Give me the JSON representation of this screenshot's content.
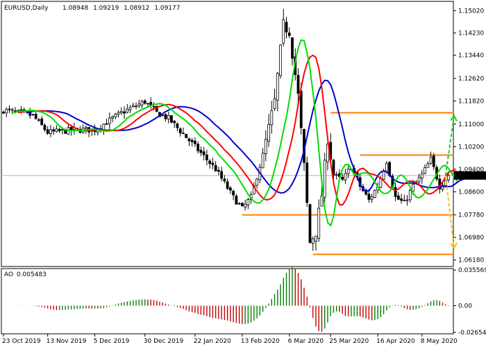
{
  "chart_data": {
    "type": "candlestick",
    "symbol": "EURUSD",
    "timeframe": "Daily",
    "ohlc_header": [
      "1.08948",
      "1.09219",
      "1.08912",
      "1.09177"
    ],
    "current_price": "1.09177",
    "price_axis": {
      "ylim": [
        1.0595,
        1.1535
      ],
      "ticks": [
        "1.15020",
        "1.14230",
        "1.13440",
        "1.12620",
        "1.11820",
        "1.11000",
        "1.10200",
        "1.09400",
        "1.08600",
        "1.07780",
        "1.06980",
        "1.06180"
      ]
    },
    "date_axis": {
      "labels": [
        "23 Oct 2019",
        "13 Nov 2019",
        "5 Dec 2019",
        "30 Dec 2019",
        "22 Jan 2020",
        "13 Feb 2020",
        "6 Mar 2020",
        "25 Mar 2020",
        "16 Apr 2020",
        "8 May 2020"
      ],
      "label_bars": [
        0,
        15,
        31,
        48,
        65,
        81,
        97,
        111,
        127,
        142
      ]
    },
    "bar_count": 152,
    "key_price_path": [
      [
        0,
        1.115
      ],
      [
        10,
        1.113
      ],
      [
        15,
        1.107
      ],
      [
        25,
        1.108
      ],
      [
        31,
        1.108
      ],
      [
        40,
        1.114
      ],
      [
        48,
        1.118
      ],
      [
        52,
        1.114
      ],
      [
        56,
        1.112
      ],
      [
        65,
        1.102
      ],
      [
        72,
        1.094
      ],
      [
        78,
        1.084
      ],
      [
        81,
        1.08
      ],
      [
        84,
        1.084
      ],
      [
        88,
        1.099
      ],
      [
        92,
        1.118
      ],
      [
        95,
        1.145
      ],
      [
        97,
        1.143
      ],
      [
        100,
        1.12
      ],
      [
        102,
        1.095
      ],
      [
        104,
        1.068
      ],
      [
        106,
        1.072
      ],
      [
        108,
        1.085
      ],
      [
        110,
        1.105
      ],
      [
        112,
        1.092
      ],
      [
        115,
        1.09
      ],
      [
        118,
        1.095
      ],
      [
        121,
        1.088
      ],
      [
        124,
        1.083
      ],
      [
        127,
        1.088
      ],
      [
        130,
        1.097
      ],
      [
        133,
        1.084
      ],
      [
        136,
        1.082
      ],
      [
        139,
        1.088
      ],
      [
        142,
        1.092
      ],
      [
        145,
        1.0975
      ],
      [
        148,
        1.088
      ],
      [
        151,
        1.0918
      ]
    ],
    "levels": [
      {
        "price": 1.114,
        "color": "#ff8000",
        "from_bar": 111
      },
      {
        "price": 1.099,
        "color": "#ff8000",
        "from_bar": 121
      },
      {
        "price": 1.0778,
        "color": "#ff8000",
        "from_bar": 81
      },
      {
        "price": 1.0638,
        "color": "#ff8000",
        "from_bar": 105
      }
    ],
    "forecast": [
      {
        "color": "#22cc22",
        "to_price": 1.113
      },
      {
        "color": "#f0c020",
        "to_price": 1.066
      }
    ],
    "indicator": {
      "name": "AO",
      "value": "0.005483",
      "ticks": [
        "0.035569",
        "0.00",
        "-0.026543"
      ],
      "ylim": [
        -0.028,
        0.037
      ]
    },
    "colors": {
      "bull_candle": "#000000",
      "bear_candle": "#000000",
      "ma_fast": "#00dd00",
      "ma_mid": "#ff0000",
      "ma_slow": "#0000cc",
      "ao_up": "#008000",
      "ao_down": "#c00000",
      "current_line": "#b0b0b0"
    }
  }
}
